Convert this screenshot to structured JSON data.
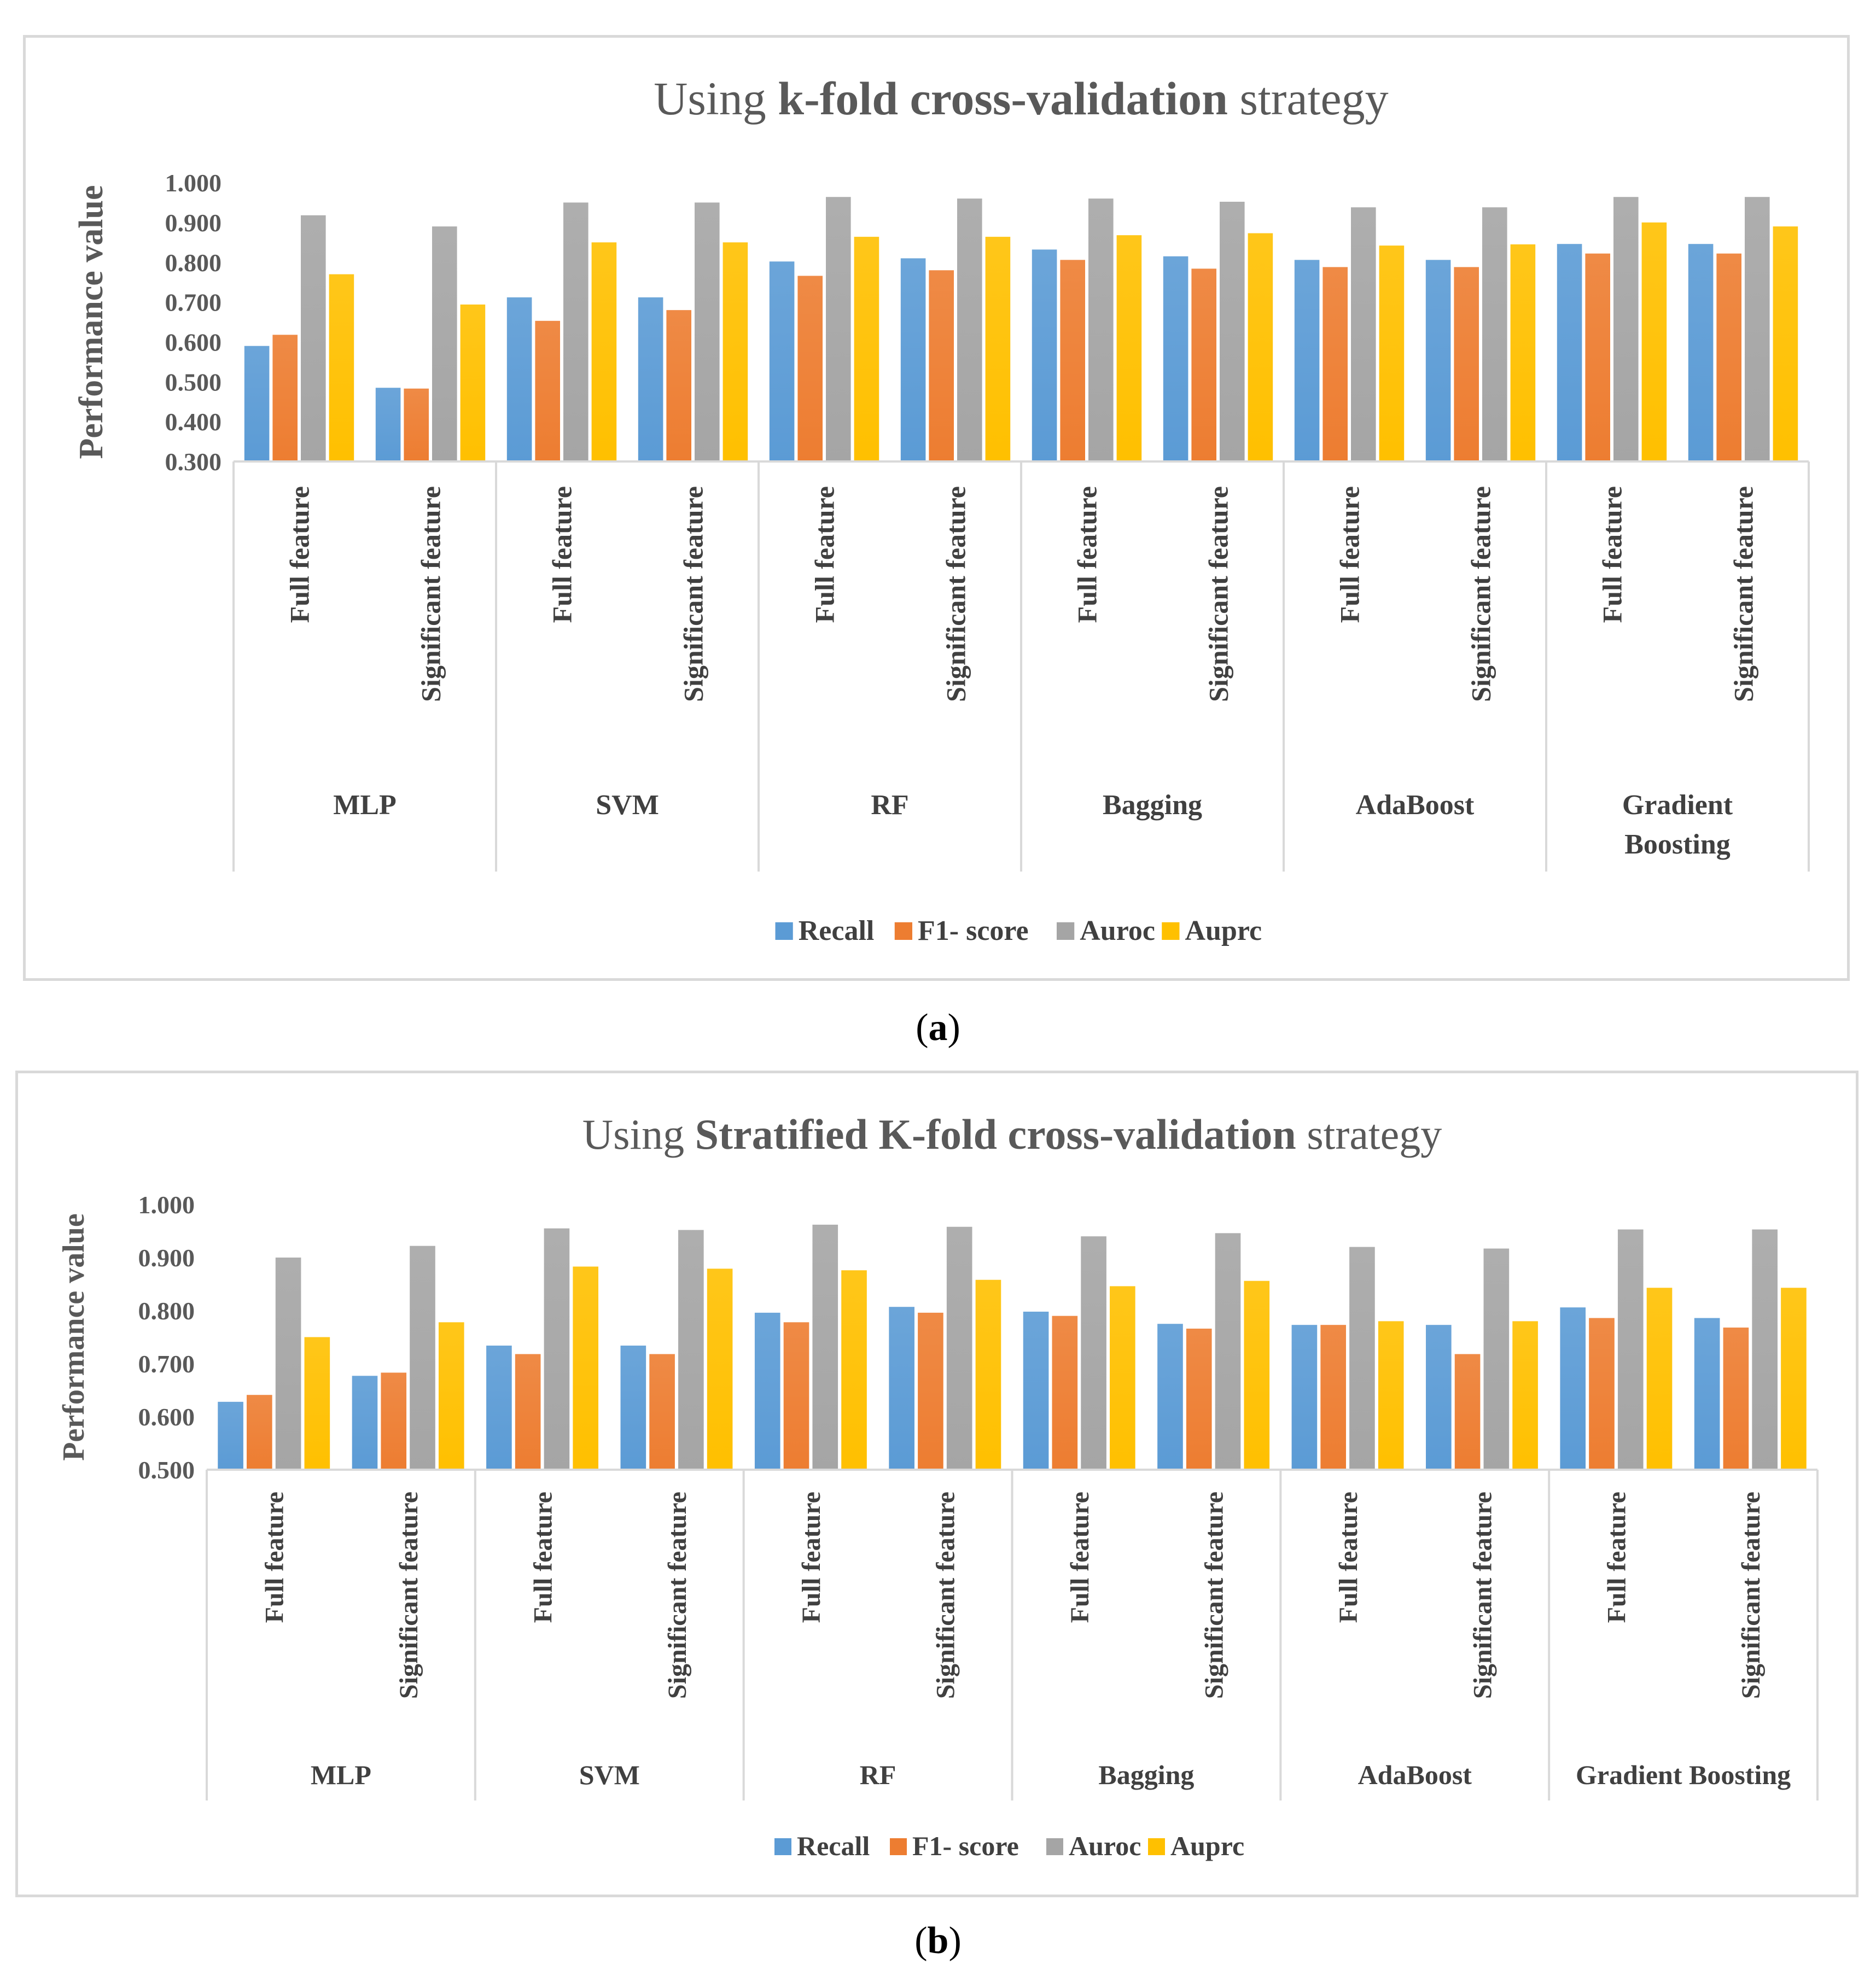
{
  "charts": [
    {
      "title_prefix": "Using ",
      "title_bold": "k-fold cross-validation",
      "title_suffix": " strategy",
      "ylabel": "Performance value",
      "caption_open": "(",
      "caption_letter": "a",
      "caption_close": ")",
      "y_ticks": [
        "1.000",
        "0.900",
        "0.800",
        "0.700",
        "0.600",
        "0.500",
        "0.400",
        "0.300"
      ]
    },
    {
      "title_prefix": "Using ",
      "title_bold": "Stratified K-fold cross-validation",
      "title_suffix": " strategy",
      "ylabel": "Performance value",
      "caption_open": "(",
      "caption_letter": "b",
      "caption_close": ")",
      "y_ticks": [
        "1.000",
        "0.900",
        "0.800",
        "0.700",
        "0.600",
        "0.500"
      ]
    }
  ],
  "chart_data": [
    {
      "type": "bar",
      "title": "Using k-fold cross-validation strategy",
      "ylabel": "Performance value",
      "xlabel": "",
      "ylim": [
        0.3,
        1.0
      ],
      "groups": [
        "MLP",
        "SVM",
        "RF",
        "Bagging",
        "AdaBoost",
        "Gradient Boosting"
      ],
      "group_label_lines": [
        [
          "MLP"
        ],
        [
          "SVM"
        ],
        [
          "RF"
        ],
        [
          "Bagging"
        ],
        [
          "AdaBoost"
        ],
        [
          "Gradient",
          "Boosting"
        ]
      ],
      "subcategories": [
        "Full feature",
        "Significant feature"
      ],
      "legend_position": "bottom",
      "series": [
        {
          "name": "Recall",
          "color": "#5b9bd5",
          "values": [
            0.59,
            0.485,
            0.712,
            0.712,
            0.802,
            0.81,
            0.832,
            0.815,
            0.806,
            0.806,
            0.846,
            0.846
          ]
        },
        {
          "name": "F1- score",
          "color": "#ed7d31",
          "values": [
            0.618,
            0.483,
            0.653,
            0.68,
            0.766,
            0.78,
            0.806,
            0.784,
            0.788,
            0.788,
            0.822,
            0.822
          ]
        },
        {
          "name": "Auroc",
          "color": "#a5a5a5",
          "values": [
            0.918,
            0.89,
            0.95,
            0.95,
            0.964,
            0.96,
            0.96,
            0.952,
            0.938,
            0.938,
            0.964,
            0.964
          ]
        },
        {
          "name": "Auprc",
          "color": "#ffc000",
          "values": [
            0.77,
            0.694,
            0.85,
            0.85,
            0.864,
            0.864,
            0.868,
            0.873,
            0.842,
            0.845,
            0.9,
            0.89
          ]
        }
      ]
    },
    {
      "type": "bar",
      "title": "Using Stratified K-fold cross-validation strategy",
      "ylabel": "Performance value",
      "xlabel": "",
      "ylim": [
        0.5,
        1.0
      ],
      "groups": [
        "MLP",
        "SVM",
        "RF",
        "Bagging",
        "AdaBoost",
        "Gradient Boosting"
      ],
      "group_label_lines": [
        [
          "MLP"
        ],
        [
          "SVM"
        ],
        [
          "RF"
        ],
        [
          "Bagging"
        ],
        [
          "AdaBoost"
        ],
        [
          "Gradient Boosting"
        ]
      ],
      "subcategories": [
        "Full feature",
        "Significant feature"
      ],
      "legend_position": "bottom",
      "series": [
        {
          "name": "Recall",
          "color": "#5b9bd5",
          "values": [
            0.628,
            0.677,
            0.734,
            0.734,
            0.796,
            0.807,
            0.798,
            0.775,
            0.773,
            0.773,
            0.806,
            0.786
          ]
        },
        {
          "name": "F1- score",
          "color": "#ed7d31",
          "values": [
            0.641,
            0.683,
            0.718,
            0.718,
            0.778,
            0.796,
            0.79,
            0.766,
            0.773,
            0.718,
            0.786,
            0.768
          ]
        },
        {
          "name": "Auroc",
          "color": "#a5a5a5",
          "values": [
            0.9,
            0.922,
            0.955,
            0.952,
            0.962,
            0.958,
            0.94,
            0.946,
            0.92,
            0.917,
            0.953,
            0.953
          ]
        },
        {
          "name": "Auprc",
          "color": "#ffc000",
          "values": [
            0.75,
            0.778,
            0.883,
            0.879,
            0.876,
            0.858,
            0.846,
            0.856,
            0.78,
            0.78,
            0.843,
            0.843
          ]
        }
      ]
    }
  ]
}
